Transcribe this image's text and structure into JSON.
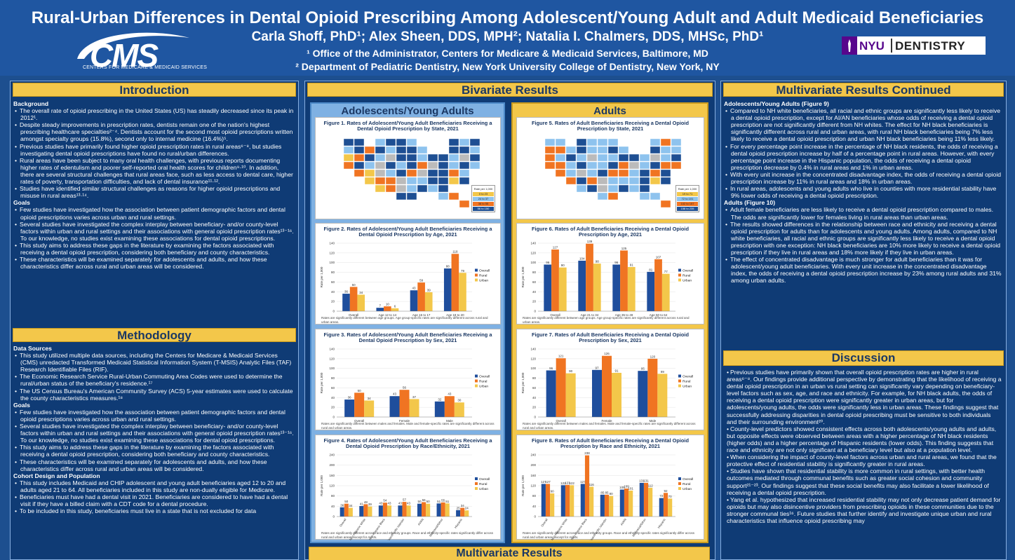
{
  "header": {
    "title": "Rural-Urban Differences in Dental Opioid Prescribing Among Adolescent/Young Adult and Adult Medicaid Beneficiaries",
    "authors": "Carla Shoff, PhD¹; Alex Sheen, DDS, MPH²; Natalia I. Chalmers, DDS, MHSc, PhD¹",
    "affiliation1": "¹ Office of the Administrator, Centers for Medicare & Medicaid Services, Baltimore, MD",
    "affiliation2": "² Department of Pediatric Dentistry, New York University College of Dentistry, New York, NY",
    "cms_logo": "CMS",
    "cms_subtitle": "CENTERS FOR MEDICARE & MEDICAID SERVICES",
    "nyu_logo": "NYU",
    "nyu_dentistry": "DENTISTRY"
  },
  "intro": {
    "heading": "Introduction",
    "background_label": "Background",
    "background": [
      "The overall rate of opioid prescribing in the United States (US) has steadily decreased since its peak in 2012¹.",
      "Despite steady improvements in prescription rates, dentists remain one of the nation's highest prescribing healthcare specialties²⁻⁴. Dentists account for the second most opioid prescriptions written amongst specialty groups (15.8%), second only to internal medicine (16.4%)⁵.",
      "Previous studies have primarily found higher opioid prescription rates in rural areas⁶⁻⁸, but studies investigating dental opioid prescriptions have found no rural/urban differences.",
      "Rural areas have been subject to many oral health challenges, with previous reports documenting higher rates of edentulism and poorer self-reported oral health scores for children⁹·¹⁰. In addition, there are several structural challenges that rural areas face, such as less access to dental care, higher rates of poverty, transportation difficulties, and lack of dental insurance¹¹·¹².",
      "Studies have identified similar structural challenges as reasons for higher opioid prescriptions and misuse in rural areas¹³·¹⁴."
    ],
    "goals_label": "Goals",
    "goals": [
      "Few studies have investigated how the association between patient demographic factors and dental opioid prescriptions varies across urban and rural settings.",
      "Several studies have investigated the complex interplay between beneficiary- and/or county-level factors within urban and rural settings and their associations with general opioid prescription rates¹³⁻¹⁶. To our knowledge, no studies exist examining these associations for dental opioid prescriptions.",
      "This study aims to address these gaps in the literature by examining the factors associated with receiving a dental opioid prescription, considering both beneficiary and county characteristics.",
      "These characteristics will be examined separately for adolescents and adults, and how these characteristics differ across rural and urban areas will be considered."
    ]
  },
  "methods": {
    "heading": "Methodology",
    "data_label": "Data Sources",
    "data": [
      "This study utilized multiple data sources, including the Centers for Medicare & Medicaid Services (CMS) unredacted Transformed Medicaid Statistical Information System (T-MSIS) Analytic Files (TAF) Research Identifiable Files (RIF).",
      "The Economic Research Service Rural-Urban Commuting Area Codes were used to determine the rural/urban status of the beneficiary's residence.¹⁷",
      "The US Census Bureau's American Community Survey (ACS) 5-year estimates were used to calculate the county characteristics measures.¹⁸"
    ],
    "goals_label": "Goals",
    "goals": [
      "Few studies have investigated how the association between patient demographic factors and dental opioid prescriptions varies across urban and rural settings.",
      "Several studies have investigated the complex interplay between beneficiary- and/or county-level factors within urban and rural settings and their associations with general opioid prescription rates¹³⁻¹⁶. To our knowledge, no studies exist examining these associations for dental opioid prescriptions.",
      "This study aims to address these gaps in the literature by examining the factors associated with receiving a dental opioid prescription, considering both beneficiary and county characteristics.",
      "These characteristics will be examined separately for adolescents and adults, and how these characteristics differ across rural and urban areas will be considered."
    ],
    "cohort_label": "Cohort Design and Population",
    "cohort": [
      "This study includes Medicaid and CHIP adolescent and young adult beneficiaries aged 12 to 20 and adults aged 21 to 64. All beneficiaries included in this study are non-dually eligible for Medicare.",
      "Beneficiaries must have had a dental visit in 2021. Beneficiaries are considered to have had a dental visit if they have a billed claim with a CDT code for a dental procedure.",
      "To be included in this study, beneficiaries must live in a state that is not excluded for data"
    ]
  },
  "bivariate": {
    "heading": "Bivariate Results",
    "ay_heading": "Adolescents/Young Adults",
    "ad_heading": "Adults",
    "map_legend_title": "Rate per 1,000",
    "map_legend_ay": [
      "0 to 23",
      "24 to 37",
      "38 to 55",
      "56 to 150",
      "Excluded"
    ],
    "map_legend_ad": [
      "19 to 71",
      "72 to 101",
      "102 to 157",
      "158 to 235",
      "Excluded"
    ],
    "fig1_title": "Figure 1. Rates of Adolescent/Young Adult Beneficiaries Receiving a Dental Opioid Prescription by State, 2021",
    "fig5_title": "Figure 5. Rates of Adult Beneficiaries Receiving a Dental Opioid Prescription by State, 2021",
    "fig2_title": "Figure 2. Rates of Adolescent/Young Adult Beneficiaries Receiving a Dental Opioid Prescription by Age, 2021",
    "fig6_title": "Figure 6. Rates of Adult Beneficiaries Receiving a Dental Opioid Prescription by Age, 2021",
    "fig3_title": "Figure 3. Rates of Adolescent/Young Adult Beneficiaries Receiving a Dental Opioid Prescription by Sex, 2021",
    "fig7_title": "Figure 7. Rates of Adult Beneficiaries Receiving a Dental Opioid Prescription by Sex, 2021",
    "fig4_title": "Figure 4. Rates of Adolescent/Young Adult Beneficiaries Receiving a Dental Opioid Prescription by Race/Ethnicity, 2021",
    "fig8_title": "Figure 8. Rates of Adult Beneficiaries Receiving a Dental Opioid Prescription by Race and Ethnicity, 2021",
    "fig2_note": "Rates are significantly different between age groups. Age group-specific rates are significantly different across rural and urban areas.",
    "fig6_note": "Rates are significantly different between age groups. Age group-specific rates are significantly different across rural and urban areas.",
    "fig3_note": "Rates are significantly different between males and females. Male and female-specific rates are significantly different across rural and urban areas.",
    "fig7_note": "Rates are significantly different between males and females. Male and female-specific rates are significantly different across rural and urban areas.",
    "fig4_note": "Rates are significantly different across race and ethnicity groups. Race and ethnicity-specific rates significantly differ across rural and urban areas, except for AI/AN.",
    "fig8_note": "Rates are significantly different across race and ethnicity groups. Race and ethnicity-specific rates significantly differ across rural and urban areas, except for AI/AN.",
    "y_label": "Rate per 1,000",
    "legend": [
      "Overall",
      "Rural",
      "Urban"
    ]
  },
  "colors": {
    "overall": "#1f4e9c",
    "rural": "#f07422",
    "urban": "#f3c74a",
    "map_light": "#8ec3ee",
    "map_mid": "#3f82cc",
    "map_dark": "#1e4f93",
    "map_orange": "#f07422"
  },
  "chart_data": [
    {
      "id": "fig2",
      "type": "bar",
      "categories": [
        "Overall",
        "Age 12 to 14",
        "Age 15 to 17",
        "Age 18 to 20"
      ],
      "series": [
        {
          "name": "Overall",
          "values": [
            36,
            7,
            43,
            88
          ]
        },
        {
          "name": "Rural",
          "values": [
            50,
            10,
            59,
            118
          ]
        },
        {
          "name": "Urban",
          "values": [
            34,
            6,
            39,
            79
          ]
        }
      ],
      "ylim": [
        0,
        140
      ],
      "ylabel": "Rate per 1,000"
    },
    {
      "id": "fig6",
      "type": "bar",
      "categories": [
        "Overall",
        "Age 21 to 34",
        "Age 35 to 49",
        "Age 50 to 64"
      ],
      "series": [
        {
          "name": "Overall",
          "values": [
            96,
            104,
            96,
            81
          ]
        },
        {
          "name": "Rural",
          "values": [
            127,
            139,
            125,
            107
          ]
        },
        {
          "name": "Urban",
          "values": [
            90,
            98,
            91,
            77
          ]
        }
      ],
      "ylim": [
        0,
        140
      ],
      "ylabel": "Rate per 1,000"
    },
    {
      "id": "fig3",
      "type": "bar",
      "categories": [
        "Overall",
        "Female",
        "Male"
      ],
      "series": [
        {
          "name": "Overall",
          "values": [
            36,
            43,
            32
          ]
        },
        {
          "name": "Rural",
          "values": [
            50,
            56,
            43
          ]
        },
        {
          "name": "Urban",
          "values": [
            34,
            37,
            30
          ]
        }
      ],
      "ylim": [
        0,
        140
      ],
      "ylabel": "Rate per 1,000"
    },
    {
      "id": "fig7",
      "type": "bar",
      "categories": [
        "Overall",
        "Female",
        "Male"
      ],
      "series": [
        {
          "name": "Overall",
          "values": [
            96,
            97,
            95
          ]
        },
        {
          "name": "Rural",
          "values": [
            121,
            126,
            120
          ]
        },
        {
          "name": "Urban",
          "values": [
            90,
            91,
            89
          ]
        }
      ],
      "ylim": [
        0,
        140
      ],
      "ylabel": "Rate per 1,000"
    },
    {
      "id": "fig4",
      "type": "bar",
      "categories": [
        "Overall",
        "Non-Hispanic White",
        "Non-Hispanic Black",
        "Asian/Pacific Islander",
        "AI/AN",
        "Multiracial/Other",
        "Hispanic"
      ],
      "series": [
        {
          "name": "Overall",
          "values": [
            36,
            41,
            43,
            43,
            50,
            51,
            25
          ]
        },
        {
          "name": "Rural",
          "values": [
            50,
            48,
            54,
            57,
            56,
            55,
            34
          ]
        },
        {
          "name": "Urban",
          "values": [
            34,
            39,
            43,
            43,
            50,
            51,
            24
          ]
        }
      ],
      "ylim": [
        0,
        240
      ],
      "ylabel": "Rate per 1,000"
    },
    {
      "id": "fig8",
      "type": "bar",
      "categories": [
        "Overall",
        "Non-Hispanic White",
        "Non-Hispanic Black",
        "Asian/Pacific Islander",
        "AI/AN",
        "Multiracial/Other",
        "Hispanic"
      ],
      "series": [
        {
          "name": "Overall",
          "values": [
            127,
            122,
            127,
            85,
            105,
            131,
            72
          ]
        },
        {
          "name": "Rural",
          "values": [
            127,
            123,
            238,
            85,
            109,
            131,
            92
          ]
        },
        {
          "name": "Urban",
          "values": [
            90,
            122,
            116,
            80,
            101,
            112,
            70
          ]
        }
      ],
      "ylim": [
        0,
        240
      ],
      "ylabel": "Rate per 1,000"
    }
  ],
  "multivariate_cont": {
    "heading": "Multivariate Results Continued",
    "ay_label": "Adolescents/Young Adults (Figure 9)",
    "ay": [
      "Compared to NH white beneficiaries, all racial and ethnic groups are significantly less likely to receive a dental opioid prescription, except for AI/AN beneficiaries whose odds of receiving a dental opioid prescription are not significantly different from NH whites. The effect for NH black beneficiaries is significantly different across rural and urban areas, with rural NH black beneficiaries being 7% less likely to receive a dental opioid prescription and urban NH black beneficiaries being 11% less likely.",
      "For every percentage point increase in the percentage of NH black residents, the odds of receiving a dental opioid prescription increase by half of a percentage point in rural areas. However, with every percentage point increase in the Hispanic population, the odds of receiving a dental opioid prescription decrease by 0.4% in rural areas and 1% in urban areas.",
      "With every unit increase in the concentrated disadvantage index, the odds of receiving a dental opioid prescription increase by 11% in rural areas and 18% in urban areas.",
      "In rural areas, adolescents and young adults who live in counties with more residential stability have 9% lower odds of receiving a dental opioid prescription."
    ],
    "ad_label": "Adults (Figure 10)",
    "ad": [
      "Adult female beneficiaries are less likely to receive a dental opioid prescription compared to males. The odds are significantly lower for females living in rural areas than urban areas.",
      "The results showed differences in the relationship between race and ethnicity and receiving a dental opioid prescription for adults than for adolescents and young adults. Among adults, compared to NH white beneficiaries, all racial and ethnic groups are significantly less likely to receive a dental opioid prescription with one exception: NH black beneficiaries are 10% more likely to receive a dental opioid prescription if they live in rural areas and 18% more likely if they live in urban areas.",
      "The effect of concentrated disadvantage is much stronger for adult beneficiaries than it was for adolescent/young adult beneficiaries. With every unit increase in the concentrated disadvantage index, the odds of receiving a dental opioid prescription increase by 23% among rural adults and 31% among urban adults."
    ]
  },
  "discussion": {
    "heading": "Discussion",
    "items": [
      "Previous studies have primarily shown that overall opioid prescription rates are higher in rural areas⁶⁻⁸. Our findings provide additional perspective by demonstrating that the likelihood of receiving a dental opioid prescription in an urban vs rural setting can significantly vary depending on beneficiary-level factors such as sex, age, and race and ethnicity. For example, for NH black adults, the odds of receiving a dental opioid prescription were significantly greater in urban areas, but for adolescents/young adults, the odds were significantly less in urban areas. These findings suggest that successfully addressing disparities in dental opioid prescribing must be sensitive to both individuals and their surrounding environment²⁰.",
      "County-level predictors showed consistent effects across both adolescents/young adults and adults, but opposite effects were observed between areas with a higher percentage of NH black residents (higher odds) and a higher percentage of Hispanic residents (lower odds). This finding suggests that race and ethnicity are not only significant at a beneficiary level but also at a population level.",
      "When considering the impact of county-level factors across urban and rural areas, we found that the protective effect of residential stability is significantly greater in rural areas.",
      "Studies have shown that residential stability is more common in rural settings, with better health outcomes mediated through communal benefits such as greater social cohesion and community support²¹⁻²³. Our findings suggest that these social benefits may also facilitate a lower likelihood of receiving a dental opioid prescription.",
      "Yang et al. hypothesized that increased residential stability may not only decrease patient demand for opioids but may also disincentive providers from prescribing opioids in these communities due to the stronger communal ties¹⁶. Future studies that further identify and investigate unique urban and rural characteristics that influence opioid prescribing may"
    ]
  },
  "multivariate": {
    "heading": "Multivariate Results"
  }
}
